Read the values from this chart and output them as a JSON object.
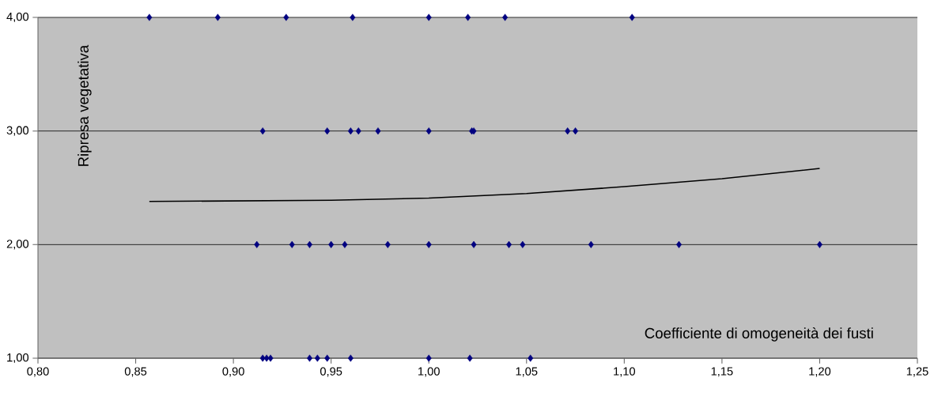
{
  "chart_data": {
    "type": "scatter",
    "xlabel": "Coefficiente di omogeneità dei fusti",
    "ylabel": "Ripresa vegetativa",
    "xlim": [
      0.8,
      1.25
    ],
    "xticks": [
      {
        "value": 0.8,
        "label": "0,80"
      },
      {
        "value": 0.85,
        "label": "0,85"
      },
      {
        "value": 0.9,
        "label": "0,90"
      },
      {
        "value": 0.95,
        "label": "0,95"
      },
      {
        "value": 1.0,
        "label": "1,00"
      },
      {
        "value": 1.05,
        "label": "1,05"
      },
      {
        "value": 1.1,
        "label": "1,10"
      },
      {
        "value": 1.15,
        "label": "1,15"
      },
      {
        "value": 1.2,
        "label": "1,20"
      },
      {
        "value": 1.25,
        "label": "1,25"
      }
    ],
    "ylim": [
      1,
      4
    ],
    "yticks": [
      {
        "value": 1,
        "label": "1,00"
      },
      {
        "value": 2,
        "label": "2,00"
      },
      {
        "value": 3,
        "label": "3,00"
      },
      {
        "value": 4,
        "label": "4,00"
      }
    ],
    "grid": "y",
    "series": [
      {
        "marker": "diamond",
        "color": "#000080",
        "x": [
          0.857,
          0.892,
          0.927,
          0.961,
          1.0,
          1.02,
          1.039,
          1.104,
          0.915,
          0.948,
          0.96,
          0.964,
          0.974,
          1.0,
          1.022,
          1.023,
          1.071,
          1.075,
          0.912,
          0.93,
          0.939,
          0.95,
          0.957,
          0.979,
          1.0,
          1.023,
          1.041,
          1.048,
          1.083,
          1.128,
          1.2,
          0.915,
          0.917,
          0.919,
          0.939,
          0.943,
          0.948,
          0.96,
          1.0,
          1.021,
          1.052
        ],
        "values": [
          4,
          4,
          4,
          4,
          4,
          4,
          4,
          4,
          3,
          3,
          3,
          3,
          3,
          3,
          3,
          3,
          3,
          3,
          2,
          2,
          2,
          2,
          2,
          2,
          2,
          2,
          2,
          2,
          2,
          2,
          2,
          1,
          1,
          1,
          1,
          1,
          1,
          1,
          1,
          1,
          1
        ]
      },
      {
        "type": "line",
        "marker": "none",
        "color": "#000000",
        "x": [
          0.857,
          0.95,
          1.0,
          1.05,
          1.1,
          1.15,
          1.2
        ],
        "values": [
          2.38,
          2.39,
          2.41,
          2.45,
          2.51,
          2.58,
          2.67
        ]
      }
    ]
  }
}
